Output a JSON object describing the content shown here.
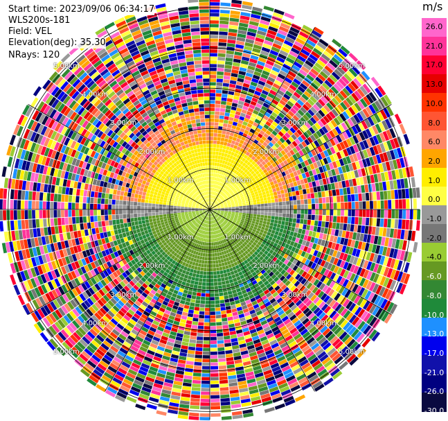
{
  "header": {
    "start_time": "Start time: 2023/09/06 06:34:17",
    "instrument": "WLS200s-181",
    "field": "Field: VEL",
    "elevation": "Elevation(deg): 35.30",
    "nrays": "NRays: 120"
  },
  "chart_data": {
    "type": "heatmap",
    "projection": "polar-ppi",
    "field": "VEL",
    "units": "m/s",
    "nrays": 120,
    "elevation_deg": 35.3,
    "range_rings_km": [
      1.0,
      2.0,
      3.0,
      4.0,
      5.0
    ],
    "ring_labels": [
      "1.00km",
      "2.00km",
      "3.00km",
      "4.00km",
      "5.00km"
    ],
    "max_range_km": 5.2,
    "colorbar": {
      "title": "m/s",
      "ticks": [
        "26.0",
        "21.0",
        "17.0",
        "13.0",
        "10.0",
        "8.0",
        "6.0",
        "2.0",
        "1.0",
        "0.0",
        "-1.0",
        "-2.0",
        "-4.0",
        "-6.0",
        "-8.0",
        "-10.0",
        "-13.0",
        "-17.0",
        "-21.0",
        "-26.0",
        "-30.0"
      ],
      "colors": [
        "#ff66cc",
        "#ff3399",
        "#ff0033",
        "#e60000",
        "#ff3300",
        "#ff5533",
        "#ff8866",
        "#ffa500",
        "#ffee00",
        "#ffff44",
        "#999999",
        "#777777",
        "#99cc33",
        "#669922",
        "#338833",
        "#1f8a3a",
        "#1e90ff",
        "#0000ee",
        "#1111aa",
        "#000080",
        "#0a0a40"
      ]
    },
    "near_field_pattern": "positive velocities north half, negative velocities south half; random noise beyond ~2.5km"
  }
}
